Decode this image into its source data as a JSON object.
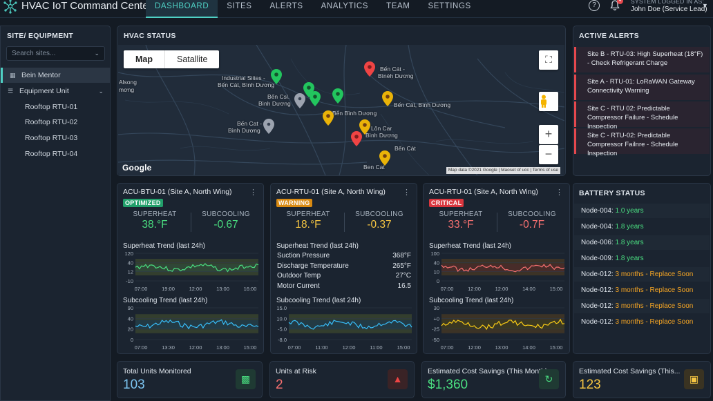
{
  "app": {
    "title": "HVAC IoT Command Center",
    "logo_icon": "network-hub-icon",
    "accent": "#4fd1c5"
  },
  "nav": {
    "tabs": [
      "DASHBOARD",
      "SITES",
      "ALERTS",
      "ANALYTICS",
      "TEAM",
      "SETTINGS"
    ],
    "active": "DASHBOARD"
  },
  "user": {
    "label": "SYSTEM LOGGED IN AS:",
    "name": "John Doe (Service Lead)",
    "notification_count": "4"
  },
  "sidebar": {
    "title": "SITE/ EQUIPMENT",
    "search_placeholder": "Search sites...",
    "items": [
      {
        "label": "Bein Mentor",
        "icon": "building-icon"
      },
      {
        "label": "Equipment Unit",
        "icon": "sliders-icon"
      },
      {
        "label": "Rooftop RTU-01"
      },
      {
        "label": "Rooftop RTU-02"
      },
      {
        "label": "Rooftop RTU-03"
      },
      {
        "label": "Rooftop RTU-04"
      }
    ]
  },
  "hvac_status": {
    "title": "HVAC STATUS",
    "map_tabs": [
      "Map",
      "Satallite"
    ],
    "google": "Google",
    "attribution": [
      "Map data ©2021 Google",
      "Maoset of ucc",
      "Terms of use"
    ],
    "labels": [
      "Industrial Siites -",
      "Bến Cát, Bình Dương",
      "Bến Cát -",
      "Bìnèh Dương",
      "Bến Cát, Bình Dương",
      "Bến Csl.",
      "Bình Dương",
      "Bến Cat -",
      "Bình Dương",
      "Bến Bình Dương",
      "Lôn Car",
      "Bình Dương",
      "Bến Cát",
      "Ben Cat",
      "Bến Cât",
      "Alsong",
      "mơng"
    ]
  },
  "alerts": {
    "title": "ACTIVE ALERTS",
    "items": [
      "Site B - RTU-03: High Superheat (18°F) - Check Refrigerant Charge",
      "Site A - RTU-01: LoRaWAN Gateway Connectivity Warning",
      "Site C - RTU 02: Predictable Compressor Failure - Schedule Inspection",
      "Site C - RTU-02: Predictable Compressor Failnre - Schedule Inspection"
    ]
  },
  "cards": [
    {
      "title": "ACU-BTU-01 (Site A, North Wing)",
      "badge": "OPTIMIZED",
      "badge_color": "#22a06b",
      "superheat_label": "SUPERHEAT",
      "superheat": "38.°F",
      "superheat_color": "#4ade80",
      "subcooling_label": "SUBCOOLING",
      "subcooling": "-0.67",
      "subcooling_color": "#4ade80",
      "trend1_title": "Superheat Trend (last 24h)",
      "trend1_yticks": [
        "120",
        "40",
        "12",
        "-10"
      ],
      "trend1_xticks": [
        "07:00",
        "19:00",
        "12:00",
        "13:00",
        "16:00"
      ],
      "trend2_title": "Subcooling Trend (last 24h)",
      "trend2_yticks": [
        "90",
        "40",
        "20",
        "0"
      ],
      "trend2_xticks": [
        "07:00",
        "13:30",
        "12:00",
        "13:00",
        "15:00"
      ]
    },
    {
      "title": "ACU-RTU-01 (Site A, North Wing)",
      "badge": "WARNING",
      "badge_color": "#d98a12",
      "superheat_label": "SUPERHEAT",
      "superheat": "18.°F",
      "superheat_color": "#f5c542",
      "subcooling_label": "SUBCOOLING",
      "subcooling": "-0.37",
      "subcooling_color": "#f5c542",
      "trend1_title": "Superheat Trend (last 24h)",
      "kv": [
        {
          "k": "Suction Pressure",
          "v": "368°F"
        },
        {
          "k": "Discharge Temperature",
          "v": "265°F"
        },
        {
          "k": "Outdoor Temp",
          "v": "27°C"
        },
        {
          "k": "Motor Current",
          "v": "16.5"
        }
      ],
      "trend2_title": "Subcooling Trend (last 24h)",
      "trend2_yticks": [
        "15.0",
        "10.0",
        "-5.0",
        "-8.0"
      ],
      "trend2_xticks": [
        "07:00",
        "11:00",
        "12:00",
        "11:00",
        "15:00"
      ]
    },
    {
      "title": "ACU-RTU-01 (Site A, North Wing)",
      "badge": "CRITICAL",
      "badge_color": "#d9363e",
      "superheat_label": "SUPERHEAT",
      "superheat": "33.°F",
      "superheat_color": "#f87171",
      "subcooling_label": "SUBCOOLING",
      "subcooling": "-0.7F",
      "subcooling_color": "#f87171",
      "trend1_title": "Superheat Trend (last 24h)",
      "trend1_yticks": [
        "100",
        "40",
        "10",
        "0"
      ],
      "trend1_xticks": [
        "07:00",
        "12:00",
        "12:00",
        "14:00",
        "15:00"
      ],
      "trend2_title": "Subcooling Trend (last 24h)",
      "trend2_yticks": [
        "30",
        "+0",
        "-25",
        "-50"
      ],
      "trend2_xticks": [
        "07:00",
        "12:00",
        "13:00",
        "14:00",
        "15:00"
      ]
    }
  ],
  "battery": {
    "title": "BATTERY STATUS",
    "rows": [
      {
        "node": "Node-004:",
        "value": "1.0 years",
        "color": "#4ade80"
      },
      {
        "node": "Node-004:",
        "value": "1.8 years",
        "color": "#4ade80"
      },
      {
        "node": "Node-006:",
        "value": "1.8 years",
        "color": "#4ade80"
      },
      {
        "node": "Node-009:",
        "value": "1.8 years",
        "color": "#4ade80"
      },
      {
        "node": "Node-012:",
        "value": "3 months - Replace Soon",
        "color": "#f5a524"
      },
      {
        "node": "Node-012:",
        "value": "3 months - Replace Soon",
        "color": "#f5a524"
      },
      {
        "node": "Node-012:",
        "value": "3 months - Replace Soon",
        "color": "#f5a524"
      },
      {
        "node": "Node-012:",
        "value": "3 months - Replace Soon",
        "color": "#f5a524"
      }
    ]
  },
  "kpis": [
    {
      "label": "Total Units Monitored",
      "value": "103",
      "color": "#7cc4f0",
      "icon": "grid-chip-icon",
      "icon_color": "#4ade80",
      "icon_bg": "#1f3a33"
    },
    {
      "label": "Units at Risk",
      "value": "2",
      "color": "#f87171",
      "icon": "warning-triangle-icon",
      "icon_color": "#ef4444",
      "icon_bg": "#3a2326"
    },
    {
      "label": "Estimated Cost Savings (This Month)",
      "value": "$1,360",
      "color": "#4ade80",
      "icon": "refresh-icon",
      "icon_color": "#4ade80",
      "icon_bg": "#1f3a33"
    },
    {
      "label": "Estimated Cost Savings (This...",
      "value": "123",
      "color": "#f5c542",
      "icon": "wallet-icon",
      "icon_color": "#f5c542",
      "icon_bg": "#3a3322"
    }
  ]
}
